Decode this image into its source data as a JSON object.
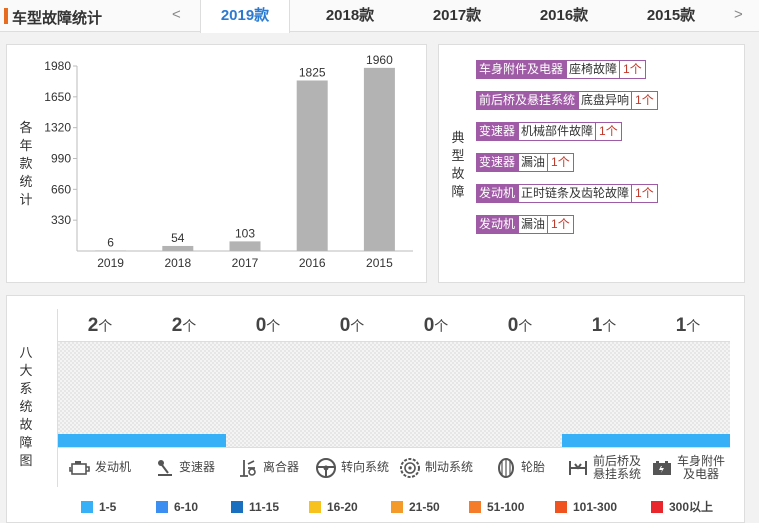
{
  "header": {
    "title": "车型故障统计",
    "prev_arrow": "<",
    "next_arrow": ">",
    "tabs": [
      {
        "label": "2019款",
        "active": true
      },
      {
        "label": "2018款",
        "active": false
      },
      {
        "label": "2017款",
        "active": false
      },
      {
        "label": "2016款",
        "active": false
      },
      {
        "label": "2015款",
        "active": false
      }
    ]
  },
  "chart_panel": {
    "vertical_label": [
      "各",
      "年",
      "款",
      "统",
      "计"
    ]
  },
  "chart_data": {
    "type": "bar",
    "categories": [
      "2019",
      "2018",
      "2017",
      "2016",
      "2015"
    ],
    "values": [
      6,
      54,
      103,
      1825,
      1960
    ],
    "yticks": [
      330,
      660,
      990,
      1320,
      1650,
      1980
    ],
    "ylim": [
      0,
      1980
    ],
    "bar_color": "#b3b3b3",
    "title": "",
    "xlabel": "",
    "ylabel": "各年款统计"
  },
  "faults_panel": {
    "vertical_label": [
      "典",
      "型",
      "故",
      "障"
    ],
    "items": [
      {
        "category": "车身附件及电器",
        "name": "座椅故障",
        "count": "1个"
      },
      {
        "category": "前后桥及悬挂系统",
        "name": "底盘异响",
        "count": "1个"
      },
      {
        "category": "变速器",
        "name": "机械部件故障",
        "count": "1个"
      },
      {
        "category": "变速器",
        "name": "漏油",
        "count": "1个"
      },
      {
        "category": "发动机",
        "name": "正时链条及齿轮故障",
        "count": "1个"
      },
      {
        "category": "发动机",
        "name": "漏油",
        "count": "1个"
      }
    ]
  },
  "systems_panel": {
    "vertical_label": [
      "八",
      "大",
      "系",
      "统",
      "故",
      "障",
      "图"
    ],
    "unit": "个",
    "systems": [
      {
        "label": "发动机",
        "count": "2",
        "icon": "engine-icon",
        "fill_color": "#38b0f7"
      },
      {
        "label": "变速器",
        "count": "2",
        "icon": "gear-shift-icon",
        "fill_color": "#38b0f7"
      },
      {
        "label": "离合器",
        "count": "0",
        "icon": "clutch-icon",
        "fill_color": ""
      },
      {
        "label": "转向系统",
        "count": "0",
        "icon": "steering-wheel-icon",
        "fill_color": ""
      },
      {
        "label": "制动系统",
        "count": "0",
        "icon": "brake-disc-icon",
        "fill_color": ""
      },
      {
        "label": "轮胎",
        "count": "0",
        "icon": "tire-icon",
        "fill_color": ""
      },
      {
        "label": "前后桥及\n悬挂系统",
        "count": "1",
        "icon": "suspension-icon",
        "fill_color": "#38b0f7"
      },
      {
        "label": "车身附件\n及电器",
        "count": "1",
        "icon": "battery-icon",
        "fill_color": "#38b0f7"
      }
    ],
    "legend": [
      {
        "label": "1-5",
        "color": "#38b0f7"
      },
      {
        "label": "6-10",
        "color": "#3c8ff0"
      },
      {
        "label": "11-15",
        "color": "#1b6fbf"
      },
      {
        "label": "16-20",
        "color": "#f7c21d"
      },
      {
        "label": "21-50",
        "color": "#f49a2a"
      },
      {
        "label": "51-100",
        "color": "#f47c2a"
      },
      {
        "label": "101-300",
        "color": "#f0531f"
      },
      {
        "label": "300以上",
        "color": "#e8262b"
      }
    ]
  }
}
